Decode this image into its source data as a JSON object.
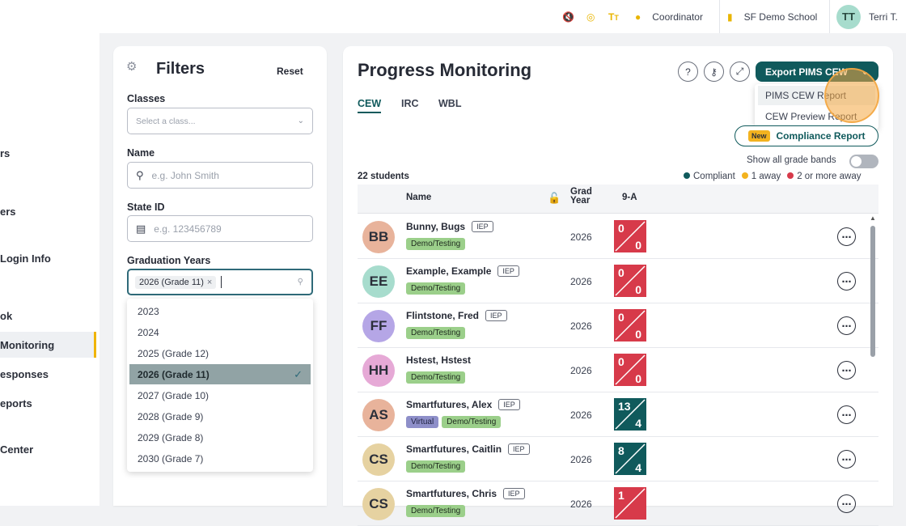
{
  "topbar": {
    "icons": [
      "mute-icon",
      "globe-icon",
      "text-size-icon"
    ],
    "role_label": "Coordinator",
    "school_label": "SF Demo School",
    "user_initials": "TT",
    "user_name": "Terri T."
  },
  "sidebar": {
    "items": [
      {
        "label": "rs"
      },
      {
        "label": "ers"
      },
      {
        "label": "Login Info"
      },
      {
        "label": "ok"
      },
      {
        "label": "Monitoring"
      },
      {
        "label": "esponses"
      },
      {
        "label": "eports"
      },
      {
        "label": "Center"
      }
    ]
  },
  "filters": {
    "title": "Filters",
    "reset_label": "Reset",
    "classes_label": "Classes",
    "classes_placeholder": "Select a class...",
    "name_label": "Name",
    "name_placeholder": "e.g. John Smith",
    "state_id_label": "State ID",
    "state_id_placeholder": "e.g. 123456789",
    "grad_years_label": "Graduation Years",
    "grad_years_chip": "2026 (Grade 11)",
    "grad_years_options": [
      {
        "label": "2023",
        "selected": false
      },
      {
        "label": "2024",
        "selected": false
      },
      {
        "label": "2025 (Grade 12)",
        "selected": false
      },
      {
        "label": "2026 (Grade 11)",
        "selected": true
      },
      {
        "label": "2027 (Grade 10)",
        "selected": false
      },
      {
        "label": "2028 (Grade 9)",
        "selected": false
      },
      {
        "label": "2029 (Grade 8)",
        "selected": false
      },
      {
        "label": "2030 (Grade 7)",
        "selected": false
      }
    ]
  },
  "main": {
    "title": "Progress Monitoring",
    "export_label": "Export PIMS CEW",
    "export_menu": [
      "PIMS CEW Report",
      "CEW Preview Report"
    ],
    "tabs": [
      "CEW",
      "IRC",
      "WBL"
    ],
    "active_tab": "CEW",
    "new_badge": "New",
    "compliance_label": "Compliance Report",
    "grade_bands_label": "Show all grade bands",
    "student_count": "22 students",
    "legend": [
      {
        "label": "Compliant",
        "color": "#105a5c"
      },
      {
        "label": "1 away",
        "color": "#f3b31f"
      },
      {
        "label": "2 or more away",
        "color": "#d73a4a"
      }
    ],
    "table_headers": {
      "name": "Name",
      "grad_year": "Grad Year",
      "band": "9-A"
    },
    "students": [
      {
        "initials": "BB",
        "avatar_color": "#e8b39b",
        "name": "Bunny, Bugs",
        "iep": "IEP",
        "tags": [
          {
            "label": "Demo/Testing",
            "kind": "demo"
          }
        ],
        "grad_year": "2026",
        "score_top": "0",
        "score_bottom": "0",
        "status_color": "#d73a4a"
      },
      {
        "initials": "EE",
        "avatar_color": "#a7dccd",
        "name": "Example, Example",
        "iep": "IEP",
        "tags": [
          {
            "label": "Demo/Testing",
            "kind": "demo"
          }
        ],
        "grad_year": "2026",
        "score_top": "0",
        "score_bottom": "0",
        "status_color": "#d73a4a"
      },
      {
        "initials": "FF",
        "avatar_color": "#b5a6e6",
        "name": "Flintstone, Fred",
        "iep": "IEP",
        "tags": [
          {
            "label": "Demo/Testing",
            "kind": "demo"
          }
        ],
        "grad_year": "2026",
        "score_top": "0",
        "score_bottom": "0",
        "status_color": "#d73a4a"
      },
      {
        "initials": "HH",
        "avatar_color": "#e6a9d6",
        "name": "Hstest, Hstest",
        "iep": "",
        "tags": [
          {
            "label": "Demo/Testing",
            "kind": "demo"
          }
        ],
        "grad_year": "2026",
        "score_top": "0",
        "score_bottom": "0",
        "status_color": "#d73a4a"
      },
      {
        "initials": "AS",
        "avatar_color": "#e8b39b",
        "name": "Smartfutures, Alex",
        "iep": "IEP",
        "tags": [
          {
            "label": "Virtual",
            "kind": "virtual"
          },
          {
            "label": "Demo/Testing",
            "kind": "demo"
          }
        ],
        "grad_year": "2026",
        "score_top": "13",
        "score_bottom": "4",
        "status_color": "#105a5c"
      },
      {
        "initials": "CS",
        "avatar_color": "#e6d2a1",
        "name": "Smartfutures, Caitlin",
        "iep": "IEP",
        "tags": [
          {
            "label": "Demo/Testing",
            "kind": "demo"
          }
        ],
        "grad_year": "2026",
        "score_top": "8",
        "score_bottom": "4",
        "status_color": "#105a5c"
      },
      {
        "initials": "CS",
        "avatar_color": "#e6d2a1",
        "name": "Smartfutures, Chris",
        "iep": "IEP",
        "tags": [
          {
            "label": "Demo/Testing",
            "kind": "demo"
          }
        ],
        "grad_year": "2026",
        "score_top": "1",
        "score_bottom": "",
        "status_color": "#d73a4a"
      }
    ]
  }
}
